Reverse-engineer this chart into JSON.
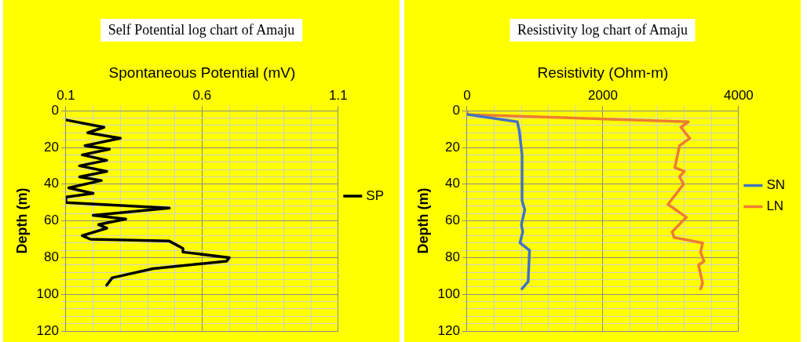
{
  "chart_data": [
    {
      "type": "line",
      "title": "Self Potential log chart of Amaju",
      "xlabel": "Spontaneous Potential (mV)",
      "ylabel": "Depth (m)",
      "xlim": [
        0.1,
        1.1
      ],
      "xticks": [
        0.1,
        {
          "value": 0.2,
          "label": null
        },
        {
          "value": 0.3,
          "label": null
        },
        {
          "value": 0.4,
          "label": null
        },
        {
          "value": 0.5,
          "label": null
        },
        0.6,
        {
          "value": 0.7,
          "label": null
        },
        {
          "value": 0.8,
          "label": null
        },
        {
          "value": 0.9,
          "label": null
        },
        {
          "value": 1.0,
          "label": null
        },
        1.1
      ],
      "ylim": [
        120,
        0
      ],
      "yticks": [
        0,
        {
          "value": 4,
          "label": null
        },
        {
          "value": 8,
          "label": null
        },
        {
          "value": 12,
          "label": null
        },
        {
          "value": 16,
          "label": null
        },
        20,
        {
          "value": 24,
          "label": null
        },
        {
          "value": 28,
          "label": null
        },
        {
          "value": 32,
          "label": null
        },
        {
          "value": 36,
          "label": null
        },
        40,
        {
          "value": 44,
          "label": null
        },
        {
          "value": 48,
          "label": null
        },
        {
          "value": 52,
          "label": null
        },
        {
          "value": 56,
          "label": null
        },
        60,
        {
          "value": 64,
          "label": null
        },
        {
          "value": 68,
          "label": null
        },
        {
          "value": 72,
          "label": null
        },
        {
          "value": 76,
          "label": null
        },
        80,
        {
          "value": 84,
          "label": null
        },
        {
          "value": 88,
          "label": null
        },
        {
          "value": 92,
          "label": null
        },
        {
          "value": 96,
          "label": null
        },
        100,
        {
          "value": 104,
          "label": null
        },
        {
          "value": 108,
          "label": null
        },
        {
          "value": 112,
          "label": null
        },
        {
          "value": 116,
          "label": null
        },
        120
      ],
      "grid": true,
      "legend": "right",
      "marker": "none",
      "series": [
        {
          "name": "SP",
          "color": "#000000",
          "x": [
            0.1,
            0.24,
            0.18,
            0.3,
            0.17,
            0.26,
            0.16,
            0.25,
            0.15,
            0.25,
            0.15,
            0.23,
            0.11,
            0.2,
            0.1,
            0.1,
            0.48,
            0.2,
            0.32,
            0.22,
            0.25,
            0.16,
            0.19,
            0.48,
            0.53,
            0.53,
            0.7,
            0.69,
            0.42,
            0.27,
            0.25
          ],
          "values": [
            5,
            9,
            12,
            15,
            19,
            21,
            24,
            27,
            30,
            33,
            36,
            38,
            42,
            45,
            47,
            50,
            53,
            57,
            59,
            62,
            64,
            68,
            70,
            71,
            75,
            77,
            80,
            82,
            86,
            91,
            95
          ]
        }
      ]
    },
    {
      "type": "line",
      "title": "Resistivity log chart of Amaju",
      "xlabel": "Resistivity (Ohm-m)",
      "ylabel": "Depth (m)",
      "xlim": [
        0,
        4000
      ],
      "xticks": [
        0,
        {
          "value": 400,
          "label": null
        },
        {
          "value": 800,
          "label": null
        },
        {
          "value": 1200,
          "label": null
        },
        {
          "value": 1600,
          "label": null
        },
        2000,
        {
          "value": 2400,
          "label": null
        },
        {
          "value": 2800,
          "label": null
        },
        {
          "value": 3200,
          "label": null
        },
        {
          "value": 3600,
          "label": null
        },
        4000
      ],
      "ylim": [
        120,
        0
      ],
      "yticks": [
        0,
        {
          "value": 4,
          "label": null
        },
        {
          "value": 8,
          "label": null
        },
        {
          "value": 12,
          "label": null
        },
        {
          "value": 16,
          "label": null
        },
        20,
        {
          "value": 24,
          "label": null
        },
        {
          "value": 28,
          "label": null
        },
        {
          "value": 32,
          "label": null
        },
        {
          "value": 36,
          "label": null
        },
        40,
        {
          "value": 44,
          "label": null
        },
        {
          "value": 48,
          "label": null
        },
        {
          "value": 52,
          "label": null
        },
        {
          "value": 56,
          "label": null
        },
        60,
        {
          "value": 64,
          "label": null
        },
        {
          "value": 68,
          "label": null
        },
        {
          "value": 72,
          "label": null
        },
        {
          "value": 76,
          "label": null
        },
        80,
        {
          "value": 84,
          "label": null
        },
        {
          "value": 88,
          "label": null
        },
        {
          "value": 92,
          "label": null
        },
        {
          "value": 96,
          "label": null
        },
        100,
        {
          "value": 104,
          "label": null
        },
        {
          "value": 108,
          "label": null
        },
        {
          "value": 112,
          "label": null
        },
        {
          "value": 116,
          "label": null
        },
        120
      ],
      "grid": true,
      "legend": "right",
      "marker": "none",
      "series": [
        {
          "name": "SN",
          "color": "#4472c4",
          "x": [
            0,
            740,
            770,
            810,
            810,
            850,
            800,
            820,
            780,
            920,
            900,
            810
          ],
          "values": [
            2,
            6,
            11,
            24,
            49,
            54,
            62,
            66,
            72,
            76,
            93,
            97
          ]
        },
        {
          "name": "LN",
          "color": "#ed7d31",
          "x": [
            0,
            0,
            3260,
            3150,
            3280,
            3130,
            3060,
            3200,
            3130,
            3190,
            2960,
            3230,
            3020,
            3050,
            3470,
            3440,
            3490,
            3410,
            3470,
            3440
          ],
          "values": [
            0,
            2,
            6,
            9,
            15,
            19,
            31,
            33,
            36,
            40,
            51,
            58,
            66,
            69,
            72,
            77,
            82,
            84,
            94,
            97
          ]
        }
      ]
    }
  ]
}
